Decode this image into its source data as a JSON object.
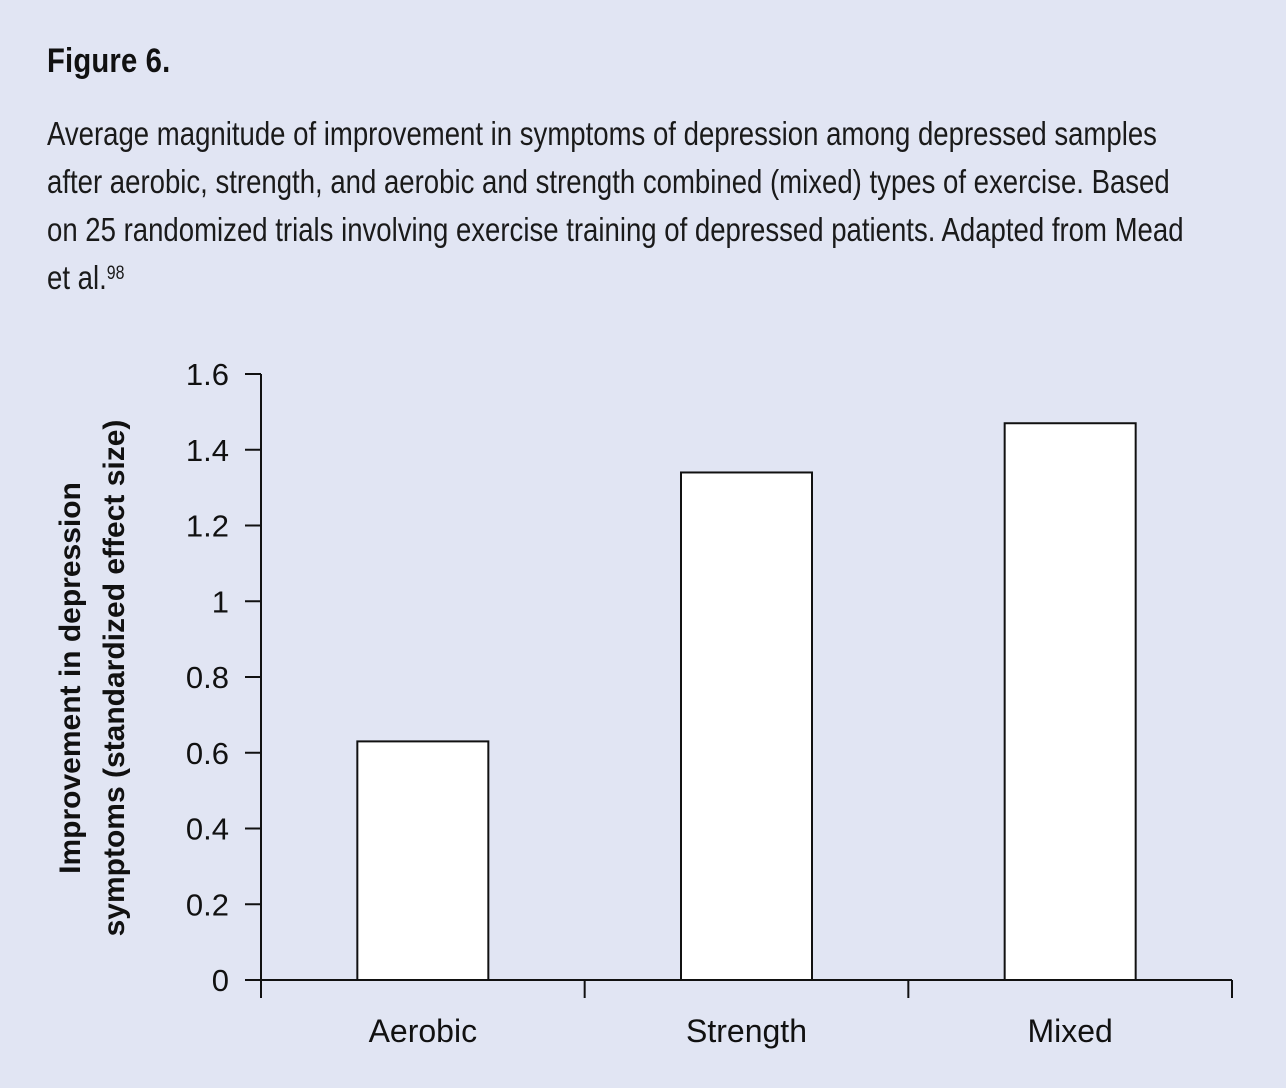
{
  "figure": {
    "label": "Figure 6.",
    "caption": "Average magnitude of improvement in symptoms of depression among depressed samples after aerobic, strength, and aerobic and strength combined (mixed) types of exercise. Based on 25 randomized trials involving exercise training of depressed patients. Adapted from Mead et al.",
    "caption_ref": "98"
  },
  "chart_data": {
    "type": "bar",
    "title": "",
    "categories": [
      "Aerobic",
      "Strength",
      "Mixed"
    ],
    "values": [
      0.63,
      1.34,
      1.47
    ],
    "ylabel_line1": "Improvement in depression",
    "ylabel_line2": "symptoms (standardized effect size)",
    "xlabel": "",
    "ylim": [
      0,
      1.6
    ],
    "yticks": [
      {
        "value": 0,
        "label": "0"
      },
      {
        "value": 0.2,
        "label": "0.2"
      },
      {
        "value": 0.4,
        "label": "0.4"
      },
      {
        "value": 0.6,
        "label": "0.6"
      },
      {
        "value": 0.8,
        "label": "0.8"
      },
      {
        "value": 1.0,
        "label": "1"
      },
      {
        "value": 1.2,
        "label": "1.2"
      },
      {
        "value": 1.4,
        "label": "1.4"
      },
      {
        "value": 1.6,
        "label": "1.6"
      }
    ],
    "grid": false,
    "legend": "none",
    "bar_color": "#ffffff",
    "bar_stroke": "#111111",
    "background": "#e1e5f3"
  }
}
